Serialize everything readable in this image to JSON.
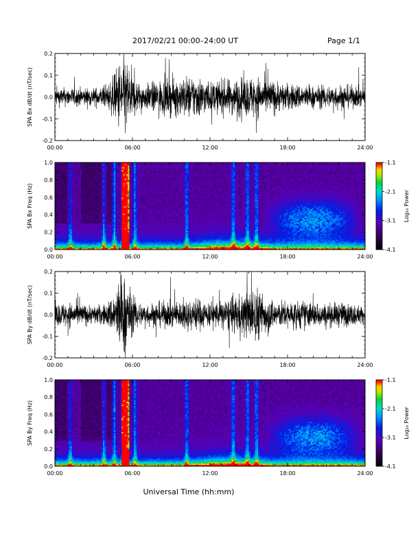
{
  "header": {
    "title": "2017/02/21   00:00–24:00 UT",
    "page": "Page 1/1"
  },
  "chart_data": [
    {
      "type": "line",
      "ylabel": "SPA Bx dB/dt (nT/sec)",
      "xlabel": "",
      "xlim": [
        0,
        24
      ],
      "ylim": [
        -0.2,
        0.2
      ],
      "x_ticks": [
        "00:00",
        "06:00",
        "12:00",
        "18:00",
        "24:00"
      ],
      "y_ticks": [
        "-0.2",
        "-0.1",
        "0.0",
        "0.1",
        "0.2"
      ],
      "color": "#000000",
      "activity_profile": {
        "hours": [
          0,
          1,
          2,
          3,
          4,
          4.6,
          5,
          5.3,
          5.6,
          6,
          6.5,
          7,
          8,
          9,
          10,
          11,
          12,
          13,
          14,
          15,
          15.5,
          16,
          17,
          18,
          19,
          20,
          21,
          22,
          23,
          24
        ],
        "envelope": [
          0.05,
          0.05,
          0.05,
          0.05,
          0.06,
          0.12,
          0.2,
          0.22,
          0.2,
          0.12,
          0.08,
          0.07,
          0.09,
          0.1,
          0.11,
          0.12,
          0.08,
          0.09,
          0.1,
          0.11,
          0.12,
          0.1,
          0.09,
          0.07,
          0.07,
          0.06,
          0.06,
          0.07,
          0.06,
          0.05
        ]
      }
    },
    {
      "type": "heatmap",
      "ylabel": "SPA Bx Freq (Hz)",
      "xlim": [
        0,
        24
      ],
      "ylim": [
        0,
        1.0
      ],
      "x_ticks": [
        "00:00",
        "06:00",
        "12:00",
        "18:00",
        "24:00"
      ],
      "y_ticks": [
        "0.0",
        "0.2",
        "0.4",
        "0.6",
        "0.8",
        "1.0"
      ],
      "colorbar": {
        "label": "Log₁₀ Power",
        "ticks": [
          "-1.1",
          "-2.1",
          "-3.1",
          "-4.1"
        ],
        "range": [
          -4.1,
          -1.1
        ]
      },
      "features": {
        "spike_hours": [
          1.2,
          3.8,
          4.6,
          5.3,
          5.5,
          6.2,
          10.2,
          13.8,
          14.9,
          15.6
        ],
        "active_band": [
          16,
          24
        ]
      }
    },
    {
      "type": "line",
      "ylabel": "SPA By dB/dt (nT/sec)",
      "xlabel": "",
      "xlim": [
        0,
        24
      ],
      "ylim": [
        -0.2,
        0.2
      ],
      "x_ticks": [
        "00:00",
        "06:00",
        "12:00",
        "18:00",
        "24:00"
      ],
      "y_ticks": [
        "-0.2",
        "-0.1",
        "0.0",
        "0.1",
        "0.2"
      ],
      "color": "#000000",
      "activity_profile": {
        "hours": [
          0,
          1,
          2,
          3,
          4,
          4.6,
          5,
          5.3,
          5.6,
          6,
          6.5,
          7,
          8,
          9,
          10,
          11,
          12,
          13,
          14,
          15,
          15.5,
          16,
          17,
          18,
          19,
          20,
          21,
          22,
          23,
          24
        ],
        "envelope": [
          0.06,
          0.07,
          0.06,
          0.05,
          0.06,
          0.12,
          0.21,
          0.22,
          0.2,
          0.1,
          0.07,
          0.06,
          0.07,
          0.07,
          0.08,
          0.09,
          0.07,
          0.08,
          0.1,
          0.13,
          0.16,
          0.12,
          0.08,
          0.07,
          0.08,
          0.07,
          0.06,
          0.07,
          0.06,
          0.05
        ]
      }
    },
    {
      "type": "heatmap",
      "ylabel": "SPA By Freq (Hz)",
      "xlim": [
        0,
        24
      ],
      "ylim": [
        0,
        1.0
      ],
      "x_ticks": [
        "00:00",
        "06:00",
        "12:00",
        "18:00",
        "24:00"
      ],
      "y_ticks": [
        "0.0",
        "0.2",
        "0.4",
        "0.6",
        "0.8",
        "1.0"
      ],
      "xlabel": "Universal Time (hh:mm)",
      "colorbar": {
        "label": "Log₁₀ Power",
        "ticks": [
          "-1.1",
          "-2.1",
          "-3.1",
          "-4.1"
        ],
        "range": [
          -4.1,
          -1.1
        ]
      },
      "features": {
        "spike_hours": [
          1.2,
          3.8,
          4.6,
          5.3,
          5.5,
          6.2,
          10.2,
          13.8,
          14.9,
          15.6
        ],
        "active_band": [
          16,
          24
        ]
      }
    }
  ]
}
